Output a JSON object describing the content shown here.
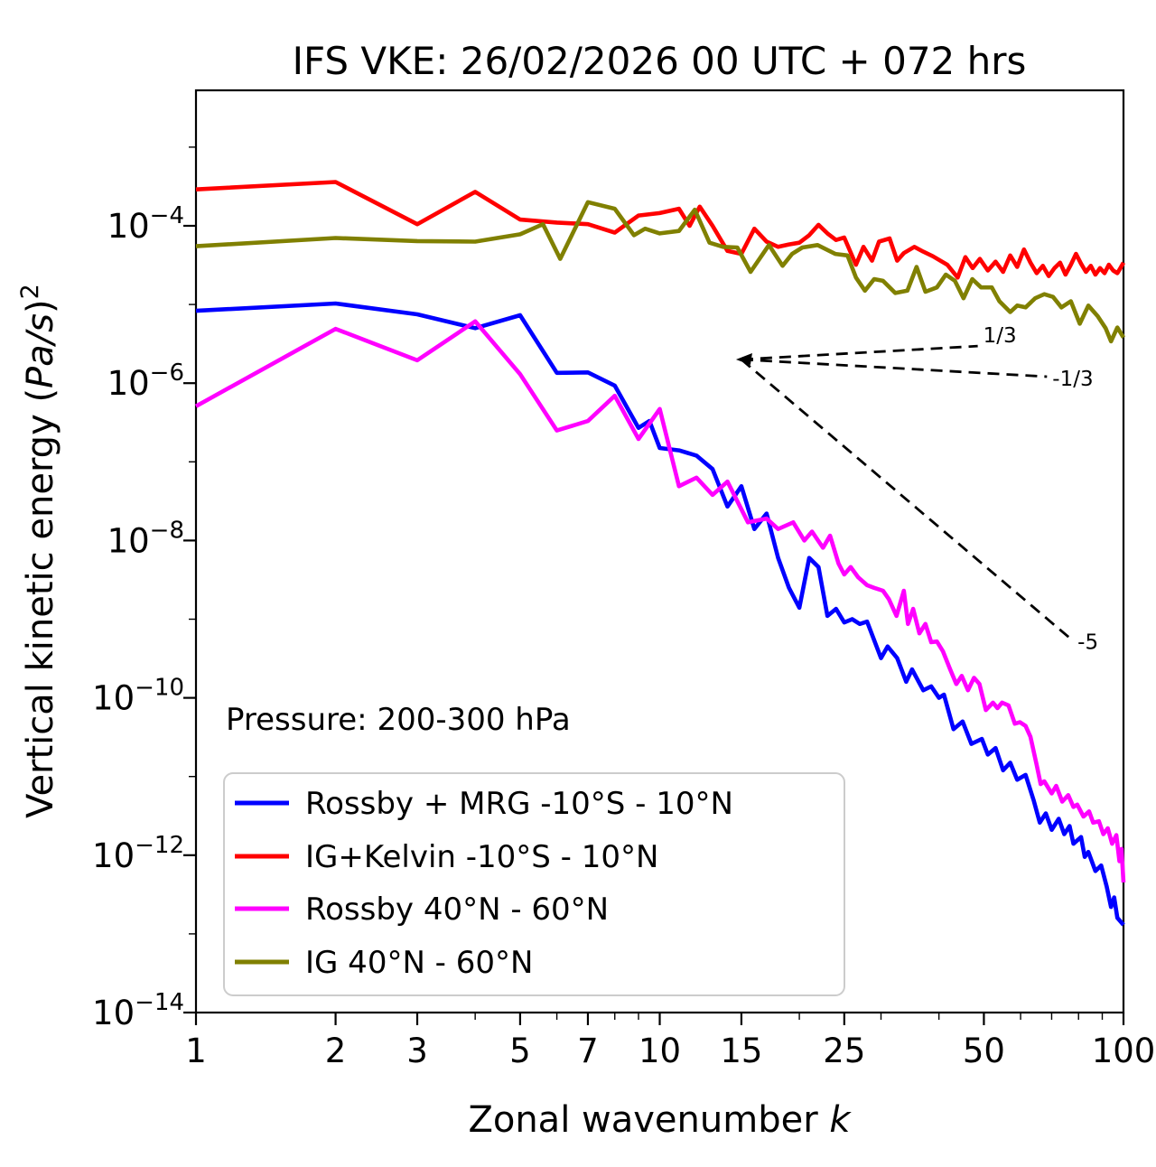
{
  "title": "IFS VKE: 26/02/2026 00 UTC + 072 hrs",
  "annotation_note": "Pressure: 200-300 hPa",
  "axes": {
    "xlabel_text": "Zonal wavenumber ",
    "xlabel_var": "k",
    "ylabel_prefix": "Vertical kinetic energy (",
    "ylabel_italic": "Pa/s",
    "ylabel_close": ")",
    "ylabel_exponent": "2"
  },
  "legend": {
    "position": "lower-left",
    "items": [
      {
        "label": "Rossby + MRG -10°S - 10°N",
        "color": "#0000ff"
      },
      {
        "label": "IG+Kelvin -10°S - 10°N",
        "color": "#ff0000"
      },
      {
        "label": "Rossby 40°N - 60°N",
        "color": "#ff00ff"
      },
      {
        "label": "IG 40°N - 60°N",
        "color": "#808000"
      }
    ]
  },
  "chart_data": {
    "type": "line",
    "title": "IFS VKE: 26/02/2026 00 UTC + 072 hrs",
    "xlabel": "Zonal wavenumber k",
    "ylabel": "Vertical kinetic energy (Pa/s)^2",
    "xscale": "log",
    "yscale": "log",
    "xlim": [
      1,
      100
    ],
    "ylim": [
      1e-14,
      0.005
    ],
    "grid": false,
    "xticks": {
      "major": [
        1,
        2,
        3,
        5,
        7,
        10,
        15,
        25,
        50,
        100
      ],
      "labels": [
        "1",
        "2",
        "3",
        "5",
        "7",
        "10",
        "15",
        "25",
        "50",
        "100"
      ],
      "minor": [
        4,
        6,
        8,
        9,
        20,
        30,
        40,
        60,
        70,
        80,
        90
      ]
    },
    "yticks": {
      "major_exponents": [
        -4,
        -6,
        -8,
        -10,
        -12,
        -14
      ],
      "minor_exponents": [
        -3,
        -5,
        -7,
        -9,
        -11,
        -13
      ],
      "mantissa": "10"
    },
    "series": [
      {
        "name": "Rossby + MRG -10°S - 10°N",
        "color": "#0000ff",
        "points": [
          [
            1,
            8.3e-06
          ],
          [
            2,
            1.03e-05
          ],
          [
            3,
            7.5e-06
          ],
          [
            4,
            5e-06
          ],
          [
            5,
            7.3e-06
          ],
          [
            6,
            1.35e-06
          ],
          [
            7,
            1.37e-06
          ],
          [
            8,
            9.3e-07
          ],
          [
            9,
            2.7e-07
          ],
          [
            9.5,
            3.3e-07
          ],
          [
            10,
            1.5e-07
          ],
          [
            11,
            1.4e-07
          ],
          [
            12,
            1.2e-07
          ],
          [
            13,
            8.1e-08
          ],
          [
            14,
            2.7e-08
          ],
          [
            15,
            4.9e-08
          ],
          [
            16,
            1.4e-08
          ],
          [
            17,
            2.2e-08
          ],
          [
            18,
            6e-09
          ],
          [
            19,
            2.5e-09
          ],
          [
            20,
            1.4e-09
          ],
          [
            21,
            6e-09
          ],
          [
            22,
            4.6e-09
          ],
          [
            23,
            1.1e-09
          ],
          [
            24,
            1.35e-09
          ],
          [
            25,
            9.1e-10
          ],
          [
            26,
            1e-09
          ],
          [
            27,
            8.7e-10
          ],
          [
            28,
            9.3e-10
          ],
          [
            30,
            3.2e-10
          ],
          [
            31,
            4.5e-10
          ],
          [
            32.5,
            3.2e-10
          ],
          [
            34,
            1.6e-10
          ],
          [
            35,
            2.3e-10
          ],
          [
            37,
            1.25e-10
          ],
          [
            38.5,
            1.4e-10
          ],
          [
            40,
            1e-10
          ],
          [
            41,
            1.1e-10
          ],
          [
            43,
            4e-11
          ],
          [
            45,
            5e-11
          ],
          [
            47,
            2.6e-11
          ],
          [
            49.5,
            3e-11
          ],
          [
            51,
            1.9e-11
          ],
          [
            53,
            2.3e-11
          ],
          [
            55,
            1.2e-11
          ],
          [
            57,
            1.5e-11
          ],
          [
            59,
            9.1e-12
          ],
          [
            61.5,
            1.05e-11
          ],
          [
            64,
            5e-12
          ],
          [
            66,
            2.6e-12
          ],
          [
            68,
            3.4e-12
          ],
          [
            70,
            2.1e-12
          ],
          [
            72.5,
            2.9e-12
          ],
          [
            74.5,
            1.85e-12
          ],
          [
            76.5,
            2.35e-12
          ],
          [
            78,
            1.4e-12
          ],
          [
            81,
            1.7e-12
          ],
          [
            82.5,
            9.5e-13
          ],
          [
            84,
            1.1e-12
          ],
          [
            87,
            6.3e-13
          ],
          [
            89.5,
            7.4e-13
          ],
          [
            92,
            4e-13
          ],
          [
            94,
            2.2e-13
          ],
          [
            95.5,
            2.9e-13
          ],
          [
            97,
            1.6e-13
          ],
          [
            100,
            1.3e-13
          ]
        ]
      },
      {
        "name": "IG+Kelvin -10°S - 10°N",
        "color": "#ff0000",
        "points": [
          [
            1,
            0.00029
          ],
          [
            2,
            0.00036
          ],
          [
            3,
            0.000105
          ],
          [
            4,
            0.00027
          ],
          [
            5,
            0.00012
          ],
          [
            6,
            0.00011
          ],
          [
            7,
            0.000105
          ],
          [
            8,
            8.2e-05
          ],
          [
            9,
            0.000135
          ],
          [
            10,
            0.000145
          ],
          [
            11,
            0.000165
          ],
          [
            11.6,
            0.0001
          ],
          [
            12.2,
            0.000175
          ],
          [
            13,
            0.0001
          ],
          [
            14,
            4.8e-05
          ],
          [
            15,
            4.4e-05
          ],
          [
            16,
            9.2e-05
          ],
          [
            17,
            6.3e-05
          ],
          [
            18,
            5.4e-05
          ],
          [
            19,
            5.8e-05
          ],
          [
            20,
            6.1e-05
          ],
          [
            21,
            7.6e-05
          ],
          [
            22,
            0.000103
          ],
          [
            23,
            8e-05
          ],
          [
            24,
            6.6e-05
          ],
          [
            25,
            7.1e-05
          ],
          [
            26.5,
            3.2e-05
          ],
          [
            27.5,
            5.4e-05
          ],
          [
            28.7,
            3.6e-05
          ],
          [
            29.7,
            6.3e-05
          ],
          [
            31.3,
            6.9e-05
          ],
          [
            32.5,
            3.6e-05
          ],
          [
            33.6,
            4.5e-05
          ],
          [
            35.4,
            5.4e-05
          ],
          [
            37,
            4.7e-05
          ],
          [
            38.8,
            4.1e-05
          ],
          [
            41.7,
            3.2e-05
          ],
          [
            43.9,
            2.2e-05
          ],
          [
            45.6,
            4e-05
          ],
          [
            47.3,
            2.9e-05
          ],
          [
            49,
            3.8e-05
          ],
          [
            51,
            2.7e-05
          ],
          [
            53,
            3.5e-05
          ],
          [
            55,
            2.6e-05
          ],
          [
            57,
            4.2e-05
          ],
          [
            59,
            3e-05
          ],
          [
            61,
            5e-05
          ],
          [
            63,
            3.4e-05
          ],
          [
            65,
            2.5e-05
          ],
          [
            67,
            3.1e-05
          ],
          [
            69,
            2.3e-05
          ],
          [
            71,
            2.9e-05
          ],
          [
            73,
            3.4e-05
          ],
          [
            75,
            2.4e-05
          ],
          [
            77,
            3.2e-05
          ],
          [
            79,
            4.4e-05
          ],
          [
            81,
            3.3e-05
          ],
          [
            83,
            2.6e-05
          ],
          [
            85,
            3.1e-05
          ],
          [
            87,
            2.4e-05
          ],
          [
            89,
            2.9e-05
          ],
          [
            91,
            2.5e-05
          ],
          [
            93,
            3.2e-05
          ],
          [
            95,
            2.7e-05
          ],
          [
            97,
            2.5e-05
          ],
          [
            98.5,
            2.9e-05
          ],
          [
            100,
            3.4e-05
          ]
        ]
      },
      {
        "name": "Rossby 40°N - 60°N",
        "color": "#ff00ff",
        "points": [
          [
            1,
            5.1e-07
          ],
          [
            2,
            4.9e-06
          ],
          [
            3,
            1.95e-06
          ],
          [
            4,
            6.1e-06
          ],
          [
            5,
            1.3e-06
          ],
          [
            6,
            2.5e-07
          ],
          [
            7,
            3.3e-07
          ],
          [
            8,
            6.9e-07
          ],
          [
            9,
            1.95e-07
          ],
          [
            10,
            4.7e-07
          ],
          [
            11,
            4.9e-08
          ],
          [
            12,
            6.3e-08
          ],
          [
            13,
            3.8e-08
          ],
          [
            14,
            5.6e-08
          ],
          [
            15.5,
            1.7e-08
          ],
          [
            17,
            1.9e-08
          ],
          [
            18,
            1.4e-08
          ],
          [
            19.4,
            1.7e-08
          ],
          [
            20.5,
            1e-08
          ],
          [
            21.3,
            1.3e-08
          ],
          [
            22.5,
            8.1e-09
          ],
          [
            23.3,
            1.15e-08
          ],
          [
            24.3,
            5.1e-09
          ],
          [
            25,
            3.7e-09
          ],
          [
            25.8,
            4.6e-09
          ],
          [
            26.8,
            3.4e-09
          ],
          [
            28,
            2.7e-09
          ],
          [
            29,
            2.5e-09
          ],
          [
            30.3,
            2.3e-09
          ],
          [
            31.2,
            1.8e-09
          ],
          [
            32.4,
            1.1e-09
          ],
          [
            33.6,
            2.3e-09
          ],
          [
            34.3,
            8.7e-10
          ],
          [
            35.2,
            1.35e-09
          ],
          [
            36.3,
            6.6e-10
          ],
          [
            37.4,
            8.7e-10
          ],
          [
            38.5,
            5.1e-10
          ],
          [
            39.6,
            5.2e-10
          ],
          [
            40.8,
            3.9e-10
          ],
          [
            42.3,
            2.3e-10
          ],
          [
            43.6,
            1.5e-10
          ],
          [
            44.8,
            1.9e-10
          ],
          [
            46.2,
            1.25e-10
          ],
          [
            47.6,
            1.8e-10
          ],
          [
            48.9,
            1.5e-10
          ],
          [
            50.5,
            7e-11
          ],
          [
            52.3,
            8.7e-11
          ],
          [
            53.5,
            7.4e-11
          ],
          [
            54.7,
            8.7e-11
          ],
          [
            56.5,
            8e-11
          ],
          [
            58.3,
            4.7e-11
          ],
          [
            59.8,
            4.9e-11
          ],
          [
            61.5,
            4.4e-11
          ],
          [
            63,
            3.2e-11
          ],
          [
            65,
            1.4e-11
          ],
          [
            66.3,
            8e-12
          ],
          [
            67.5,
            8.7e-12
          ],
          [
            70,
            6.1e-12
          ],
          [
            71.6,
            7.6e-12
          ],
          [
            73.8,
            4.8e-12
          ],
          [
            76,
            5.8e-12
          ],
          [
            78,
            4.1e-12
          ],
          [
            79.5,
            4.4e-12
          ],
          [
            82,
            3.1e-12
          ],
          [
            84.3,
            3.6e-12
          ],
          [
            86,
            2.6e-12
          ],
          [
            88.5,
            2.7e-12
          ],
          [
            90.5,
            1.85e-12
          ],
          [
            92.5,
            2.2e-12
          ],
          [
            94.5,
            1.4e-12
          ],
          [
            96.5,
            1.8e-12
          ],
          [
            98,
            8.4e-13
          ],
          [
            99,
            1.2e-12
          ],
          [
            100,
            4.5e-13
          ]
        ]
      },
      {
        "name": "IG 40°N - 60°N",
        "color": "#808000",
        "points": [
          [
            1,
            5.5e-05
          ],
          [
            2,
            7e-05
          ],
          [
            3,
            6.4e-05
          ],
          [
            4,
            6.3e-05
          ],
          [
            5,
            7.8e-05
          ],
          [
            5.6,
            0.000105
          ],
          [
            6.1,
            3.8e-05
          ],
          [
            7,
            0.0002
          ],
          [
            8,
            0.000165
          ],
          [
            8.8,
            7.6e-05
          ],
          [
            9.3,
            9.2e-05
          ],
          [
            10,
            8e-05
          ],
          [
            11,
            8.6e-05
          ],
          [
            11.9,
            0.00016
          ],
          [
            12.8,
            6.1e-05
          ],
          [
            13.7,
            5.4e-05
          ],
          [
            14.7,
            5.3e-05
          ],
          [
            15.7,
            2.6e-05
          ],
          [
            17.2,
            5.7e-05
          ],
          [
            18.4,
            3.1e-05
          ],
          [
            19.3,
            4.4e-05
          ],
          [
            20.3,
            5.3e-05
          ],
          [
            21.9,
            5.7e-05
          ],
          [
            23.9,
            4.4e-05
          ],
          [
            25.4,
            4.2e-05
          ],
          [
            26.5,
            2.2e-05
          ],
          [
            27.7,
            1.5e-05
          ],
          [
            29,
            2.1e-05
          ],
          [
            30.3,
            2e-05
          ],
          [
            32.2,
            1.4e-05
          ],
          [
            34.2,
            1.5e-05
          ],
          [
            35.8,
            3e-05
          ],
          [
            37.4,
            1.45e-05
          ],
          [
            39.6,
            1.65e-05
          ],
          [
            41.4,
            2.4e-05
          ],
          [
            43.3,
            2e-05
          ],
          [
            45.2,
            1.2e-05
          ],
          [
            47.2,
            2.1e-05
          ],
          [
            49.3,
            1.65e-05
          ],
          [
            52,
            1.65e-05
          ],
          [
            54,
            1.1e-05
          ],
          [
            57,
            8e-06
          ],
          [
            59,
            9.7e-06
          ],
          [
            61.5,
            9.2e-06
          ],
          [
            64.5,
            1.2e-05
          ],
          [
            67.5,
            1.35e-05
          ],
          [
            70.5,
            1.25e-05
          ],
          [
            73.5,
            9.2e-06
          ],
          [
            77,
            1.1e-05
          ],
          [
            80.5,
            5.7e-06
          ],
          [
            84,
            9.7e-06
          ],
          [
            88,
            7.1e-06
          ],
          [
            91.5,
            5e-06
          ],
          [
            94,
            3.4e-06
          ],
          [
            97,
            5.1e-06
          ],
          [
            100,
            3.8e-06
          ]
        ]
      }
    ],
    "reference_slopes": [
      {
        "label": "1/3",
        "slope": 0.3333,
        "from": [
          15,
          2e-06
        ],
        "to": [
          48.5,
          2.96e-06
        ],
        "label_dy": -4
      },
      {
        "label": "-1/3",
        "slope": -0.3333,
        "from": [
          15,
          2e-06
        ],
        "to": [
          68.4,
          1.21e-06
        ],
        "label_dy": 10
      },
      {
        "label": "-5",
        "slope": -5,
        "from": [
          15,
          2e-06
        ],
        "to": [
          77.5,
          5.43e-10
        ],
        "label_dy": 10
      }
    ]
  }
}
